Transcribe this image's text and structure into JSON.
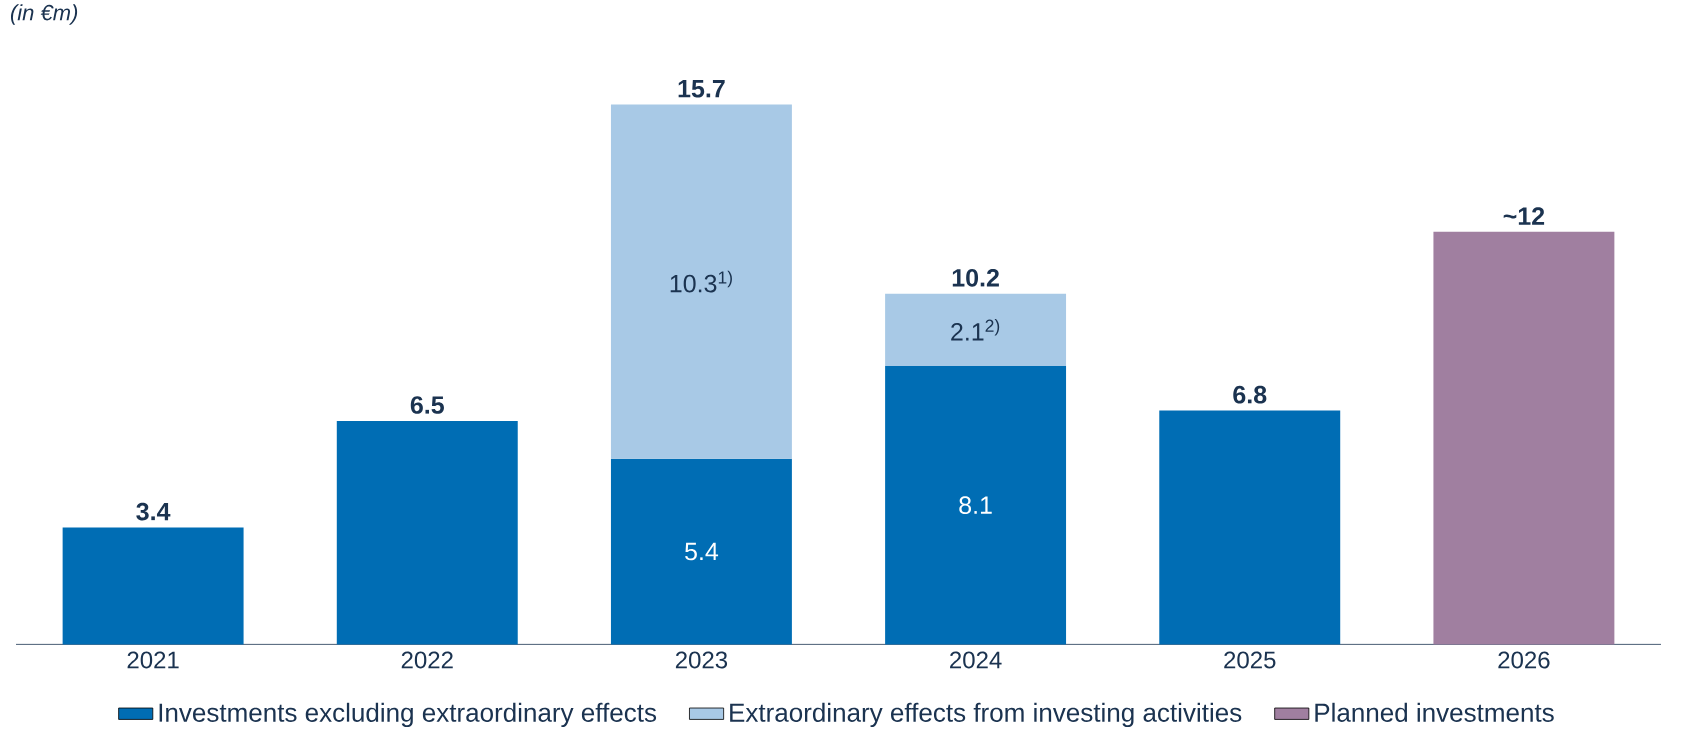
{
  "chart_data": {
    "type": "bar",
    "stacked": true,
    "ylabel": "(in €m)",
    "categories": [
      "2021",
      "2022",
      "2023",
      "2024",
      "2025",
      "2026"
    ],
    "series": [
      {
        "name": "Investments excluding extraordinary effects",
        "color": "#006db4",
        "values": [
          3.4,
          6.5,
          5.4,
          8.1,
          6.8,
          null
        ],
        "value_labels": [
          null,
          null,
          "5.4",
          "8.1",
          null,
          null
        ]
      },
      {
        "name": "Extraordinary effects from investing activities",
        "color": "#a8c9e6",
        "values": [
          null,
          null,
          10.3,
          2.1,
          null,
          null
        ],
        "value_labels": [
          null,
          null,
          "10.3$^{1)}$",
          "2.1$^{2)}$",
          null,
          null
        ]
      },
      {
        "name": "Planned investments",
        "color": "#a07fa0",
        "values": [
          null,
          null,
          null,
          null,
          null,
          12
        ]
      }
    ],
    "totals": [
      "3.4",
      "6.5",
      "15.7",
      "10.2",
      "6.8",
      "~12"
    ],
    "legend": "bottom"
  }
}
